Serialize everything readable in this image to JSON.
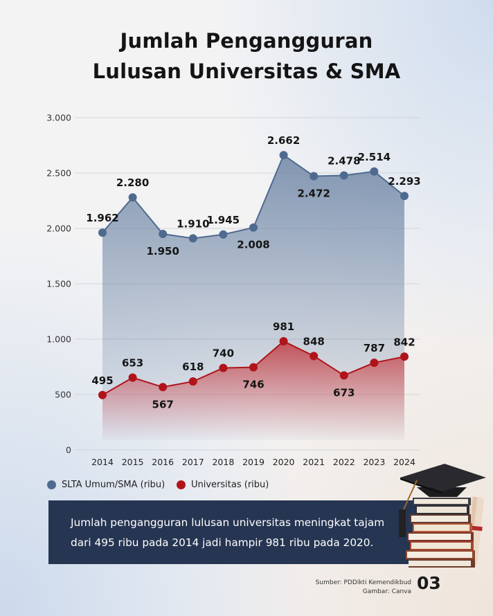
{
  "title": {
    "line1": "Jumlah Pengangguran",
    "line2": "Lulusan Universitas & SMA"
  },
  "colors": {
    "sma": "#4f6a8f",
    "universitas": "#b0141a",
    "note_bg": "#263552"
  },
  "chart_data": {
    "type": "line",
    "x": [
      "2014",
      "2015",
      "2016",
      "2017",
      "2018",
      "2019",
      "2020",
      "2021",
      "2022",
      "2023",
      "2024"
    ],
    "ylim": [
      0,
      3000
    ],
    "yticks": [
      {
        "value": 0,
        "label": "0"
      },
      {
        "value": 500,
        "label": "500"
      },
      {
        "value": 1000,
        "label": "1.000"
      },
      {
        "value": 1500,
        "label": "1.500"
      },
      {
        "value": 2000,
        "label": "2.000"
      },
      {
        "value": 2500,
        "label": "2.500"
      },
      {
        "value": 3000,
        "label": "3.000"
      }
    ],
    "grid": true,
    "legend_position": "bottom-left",
    "series": [
      {
        "name": "SLTA Umum/SMA (ribu)",
        "color": "#4f6a8f",
        "values": [
          1962,
          2280,
          1950,
          1910,
          1945,
          2008,
          2662,
          2472,
          2478,
          2514,
          2293
        ],
        "labels": [
          "1.962",
          "2.280",
          "1.950",
          "1.910",
          "1.945",
          "2.008",
          "2.662",
          "2.472",
          "2.478",
          "2.514",
          "2.293"
        ]
      },
      {
        "name": "Universitas (ribu)",
        "color": "#b0141a",
        "values": [
          495,
          653,
          567,
          618,
          740,
          746,
          981,
          848,
          673,
          787,
          842
        ],
        "labels": [
          "495",
          "653",
          "567",
          "618",
          "740",
          "746",
          "981",
          "848",
          "673",
          "787",
          "842"
        ]
      }
    ]
  },
  "note": "Jumlah pengangguran lulusan universitas meningkat tajam dari 495 ribu pada 2014 jadi hampir 981 ribu pada 2020.",
  "source": {
    "line1": "Sumber: PDDikti Kemendikbud",
    "line2": "Gambar: Canva"
  },
  "page_number": "03",
  "illustration": {
    "icon": "graduation-cap-books-icon"
  }
}
